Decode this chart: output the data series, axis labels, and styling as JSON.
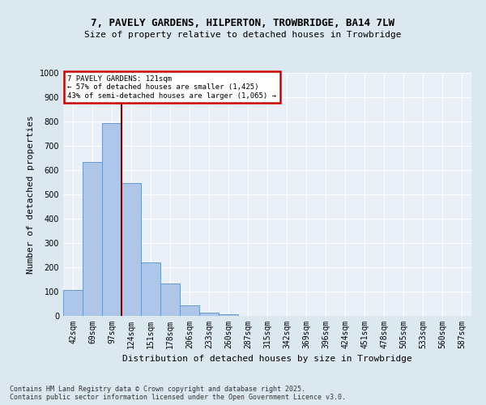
{
  "title_line1": "7, PAVELY GARDENS, HILPERTON, TROWBRIDGE, BA14 7LW",
  "title_line2": "Size of property relative to detached houses in Trowbridge",
  "xlabel": "Distribution of detached houses by size in Trowbridge",
  "ylabel": "Number of detached properties",
  "categories": [
    "42sqm",
    "69sqm",
    "97sqm",
    "124sqm",
    "151sqm",
    "178sqm",
    "206sqm",
    "233sqm",
    "260sqm",
    "287sqm",
    "315sqm",
    "342sqm",
    "369sqm",
    "396sqm",
    "424sqm",
    "451sqm",
    "478sqm",
    "505sqm",
    "533sqm",
    "560sqm",
    "587sqm"
  ],
  "values": [
    108,
    632,
    795,
    547,
    220,
    135,
    43,
    12,
    7,
    0,
    0,
    0,
    0,
    0,
    0,
    0,
    0,
    0,
    0,
    0,
    0
  ],
  "bar_color": "#aec6e8",
  "bar_edge_color": "#6699cc",
  "annotation_title": "7 PAVELY GARDENS: 121sqm",
  "annotation_line2": "← 57% of detached houses are smaller (1,425)",
  "annotation_line3": "43% of semi-detached houses are larger (1,065) →",
  "annotation_box_color": "#cc0000",
  "ylim": [
    0,
    1000
  ],
  "yticks": [
    0,
    100,
    200,
    300,
    400,
    500,
    600,
    700,
    800,
    900,
    1000
  ],
  "footer_line1": "Contains HM Land Registry data © Crown copyright and database right 2025.",
  "footer_line2": "Contains public sector information licensed under the Open Government Licence v3.0.",
  "bg_color": "#dce8f0",
  "plot_bg_color": "#eaf0f8",
  "grid_color": "#ffffff",
  "red_line_x": 2.5,
  "title1_fontsize": 9,
  "title2_fontsize": 8,
  "ylabel_fontsize": 8,
  "xlabel_fontsize": 8,
  "tick_fontsize": 7,
  "footer_fontsize": 6
}
